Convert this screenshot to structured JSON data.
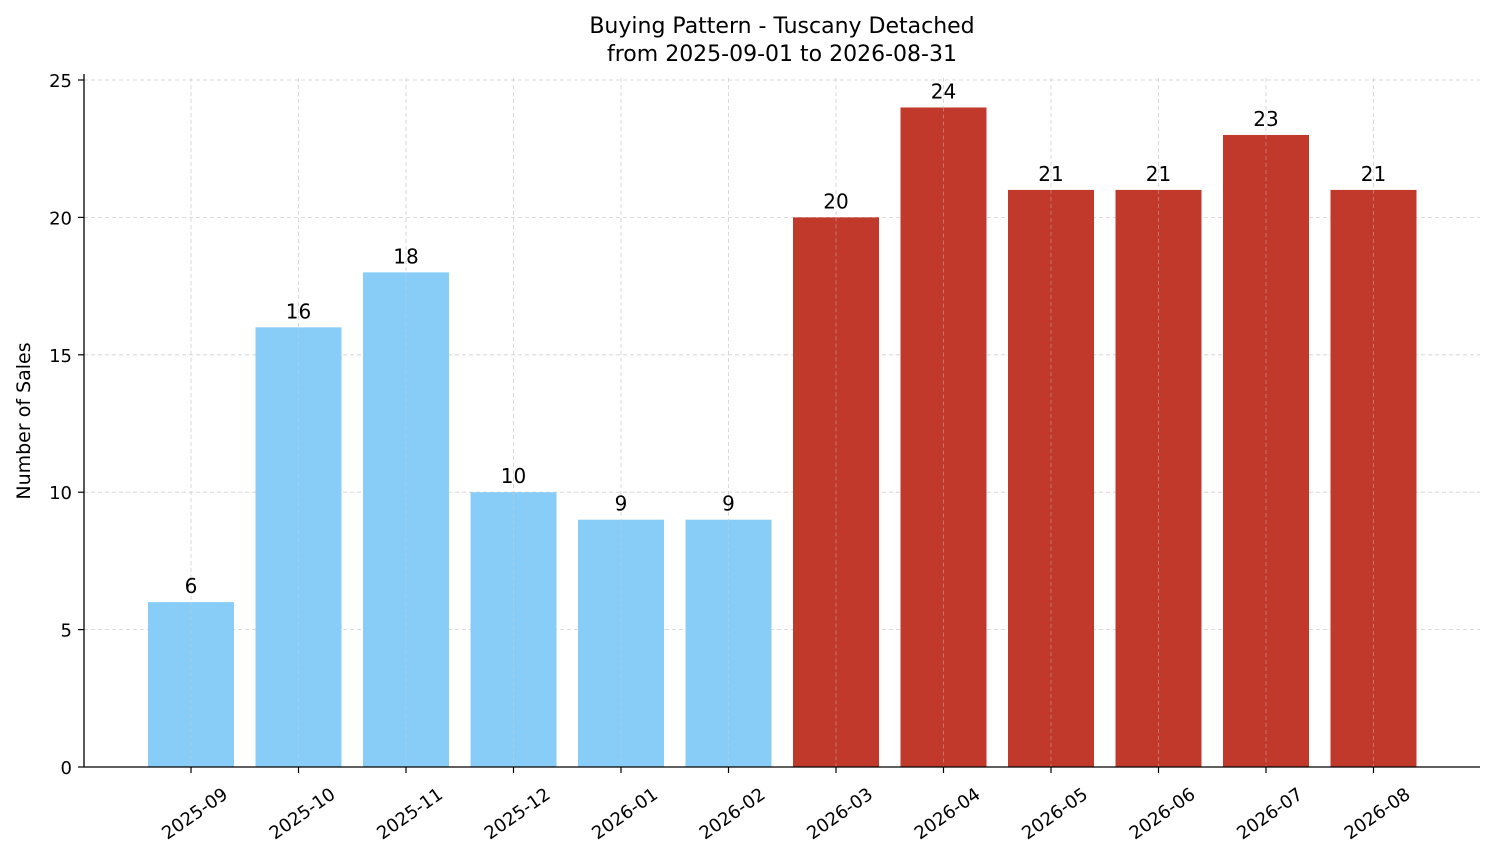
{
  "chart_data": {
    "type": "bar",
    "title": "Buying Pattern - Tuscany Detached",
    "subtitle": "from 2025-09-01 to 2026-08-31",
    "xlabel": "",
    "ylabel": "Number of Sales",
    "categories": [
      "2025-09",
      "2025-10",
      "2025-11",
      "2025-12",
      "2026-01",
      "2026-02",
      "2026-03",
      "2026-04",
      "2026-05",
      "2026-06",
      "2026-07",
      "2026-08"
    ],
    "values": [
      6,
      16,
      18,
      10,
      9,
      9,
      20,
      24,
      21,
      21,
      23,
      21
    ],
    "data_labels": [
      "6",
      "16",
      "18",
      "10",
      "9",
      "9",
      "20",
      "24",
      "21",
      "21",
      "23",
      "21"
    ],
    "bar_colors": [
      "#87cdf8",
      "#87cdf8",
      "#87cdf8",
      "#87cdf8",
      "#87cdf8",
      "#87cdf8",
      "#c0392b",
      "#c0392b",
      "#c0392b",
      "#c0392b",
      "#c0392b",
      "#c0392b"
    ],
    "ylim": [
      0,
      25
    ],
    "yticks": [
      0,
      5,
      10,
      15,
      20,
      25
    ],
    "grid": true,
    "legend": "none"
  }
}
